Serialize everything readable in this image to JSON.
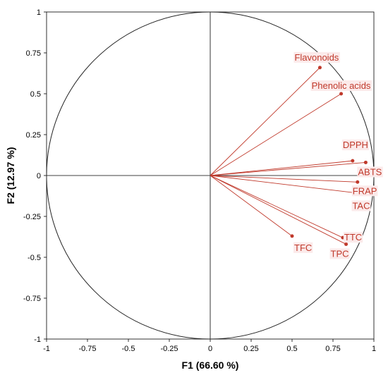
{
  "chart_data": {
    "type": "scatter",
    "xlabel": "F1 (66.60 %)",
    "ylabel": "F2 (12.97 %)",
    "xlim": [
      -1,
      1
    ],
    "ylim": [
      -1,
      1
    ],
    "x_ticks": [
      "-1",
      "-0.75",
      "-0.5",
      "-0.25",
      "0",
      "0.25",
      "0.5",
      "0.75",
      "1"
    ],
    "y_ticks": [
      "1",
      "0.75",
      "0.5",
      "0.25",
      "0",
      "-0.25",
      "-0.5",
      "-0.75",
      "-1"
    ],
    "correlation_circle": true,
    "grid": false,
    "vector_color": "#c0392b",
    "points": [
      {
        "name": "Flavonoids",
        "x": 0.67,
        "y": 0.66
      },
      {
        "name": "Phenolic acids",
        "x": 0.8,
        "y": 0.5
      },
      {
        "name": "DPPH",
        "x": 0.87,
        "y": 0.09
      },
      {
        "name": "ABTS",
        "x": 0.95,
        "y": 0.08
      },
      {
        "name": "FRAP",
        "x": 0.9,
        "y": -0.04
      },
      {
        "name": "TAC",
        "x": 0.92,
        "y": -0.11
      },
      {
        "name": "TTC",
        "x": 0.81,
        "y": -0.38
      },
      {
        "name": "TPC",
        "x": 0.83,
        "y": -0.42
      },
      {
        "name": "TFC",
        "x": 0.5,
        "y": -0.37
      }
    ]
  }
}
